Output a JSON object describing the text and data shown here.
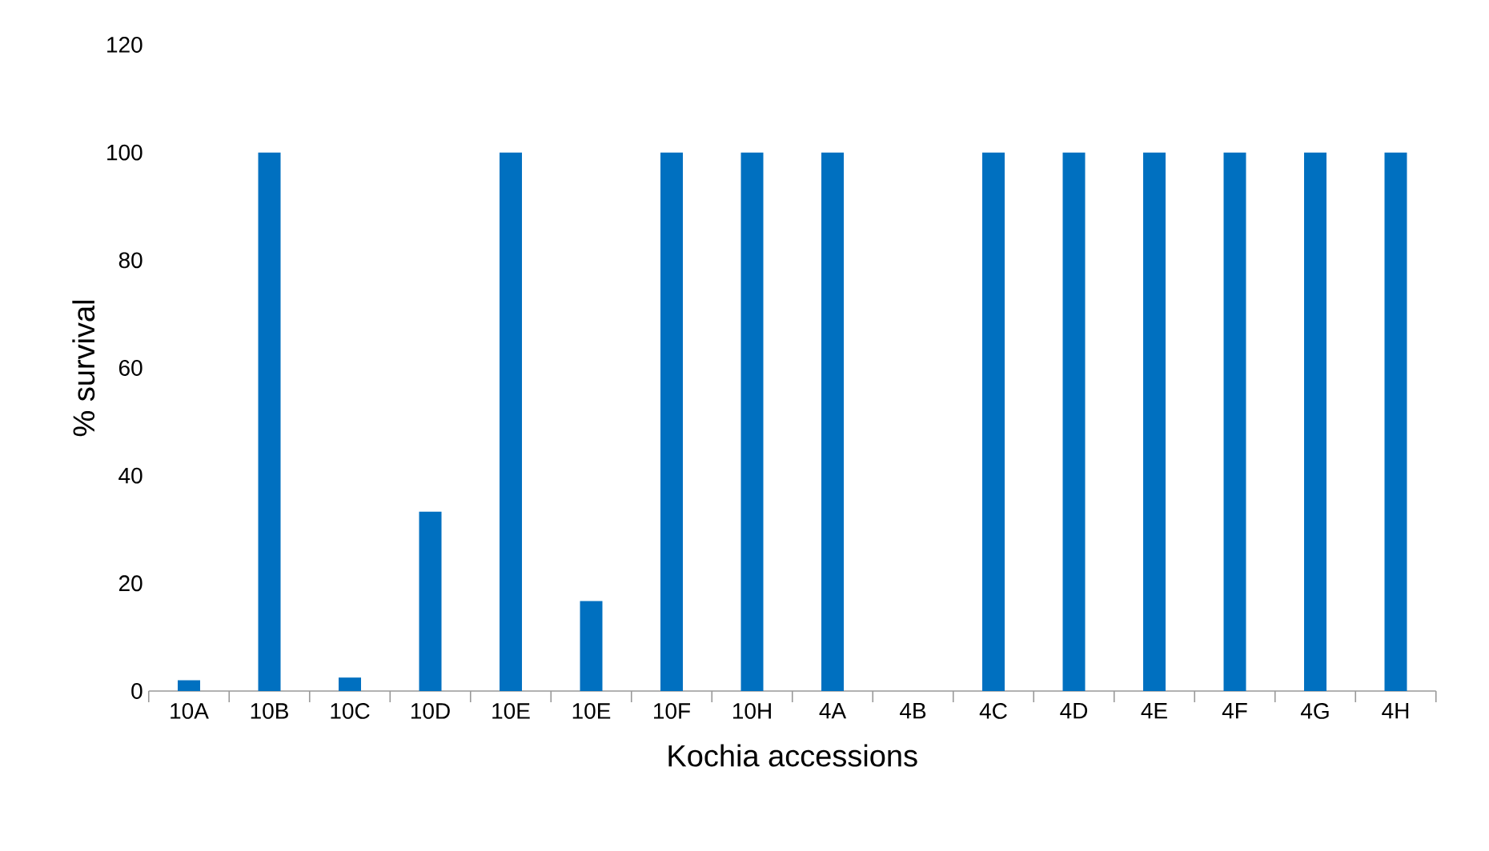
{
  "chart_data": {
    "type": "bar",
    "xlabel": "Kochia accessions",
    "ylabel": "% survival",
    "categories": [
      "10A",
      "10B",
      "10C",
      "10D",
      "10E",
      "10E",
      "10F",
      "10H",
      "4A",
      "4B",
      "4C",
      "4D",
      "4E",
      "4F",
      "4G",
      "4H"
    ],
    "values": [
      2,
      100,
      2.5,
      33.3,
      100,
      16.7,
      100,
      100,
      100,
      0,
      100,
      100,
      100,
      100,
      100,
      100
    ],
    "color": "#0070c0",
    "ylim": [
      0,
      120
    ],
    "yticks": [
      0,
      20,
      40,
      60,
      80,
      100,
      120
    ]
  }
}
